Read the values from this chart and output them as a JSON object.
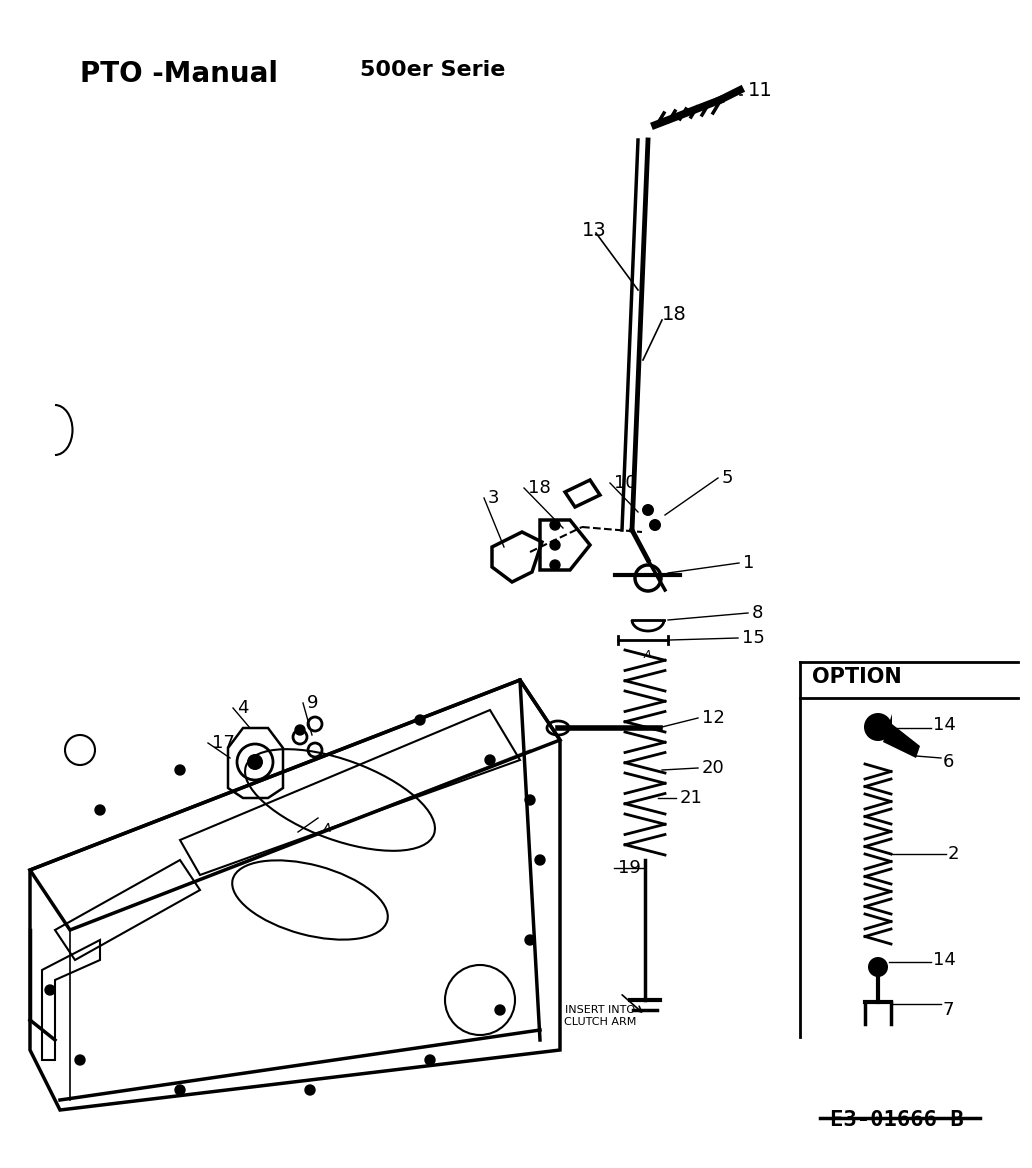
{
  "title_left": "PTO -Manual",
  "title_center": "500er Serie",
  "diagram_code": "E3-01666 B",
  "background_color": "#ffffff",
  "text_color": "#000000",
  "option_label": "OPTION",
  "insert_label": "INSERT INTO\nCLUTCH ARM",
  "figsize": [
    10.32,
    11.68
  ],
  "dpi": 100
}
